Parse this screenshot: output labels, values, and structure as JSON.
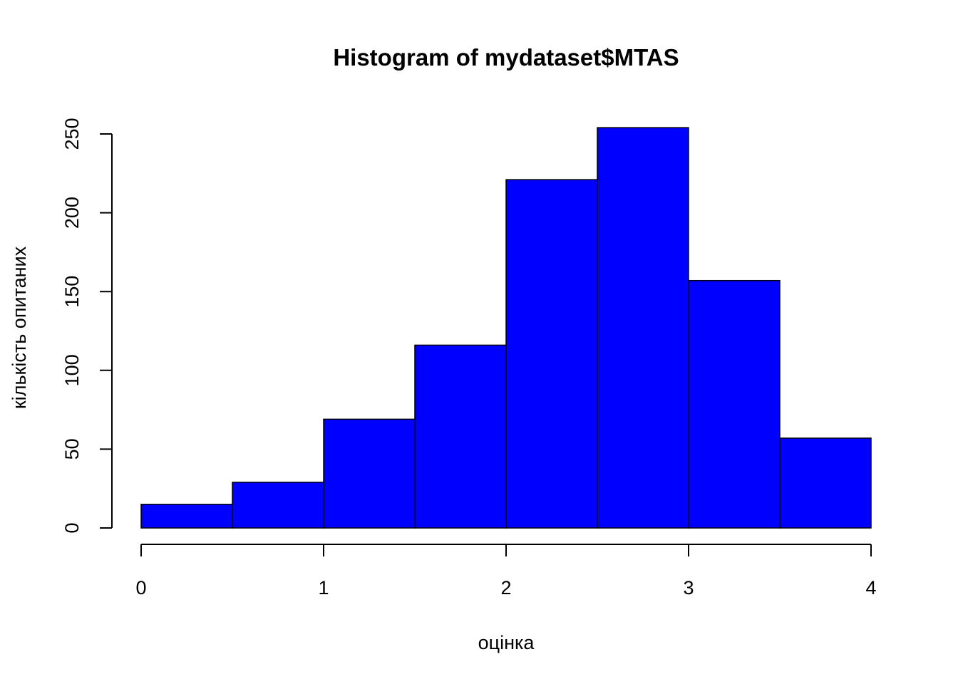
{
  "chart_data": {
    "type": "bar",
    "title": "Histogram of mydataset$MTAS",
    "xlabel": "оцінка",
    "ylabel": "кількість опитаних",
    "bins": [
      {
        "from": 0.0,
        "to": 0.5,
        "count": 15
      },
      {
        "from": 0.5,
        "to": 1.0,
        "count": 29
      },
      {
        "from": 1.0,
        "to": 1.5,
        "count": 69
      },
      {
        "from": 1.5,
        "to": 2.0,
        "count": 116
      },
      {
        "from": 2.0,
        "to": 2.5,
        "count": 221
      },
      {
        "from": 2.5,
        "to": 3.0,
        "count": 254
      },
      {
        "from": 3.0,
        "to": 3.5,
        "count": 157
      },
      {
        "from": 3.5,
        "to": 4.0,
        "count": 57
      }
    ],
    "xlim": [
      0,
      4
    ],
    "ylim": [
      0,
      250
    ],
    "xticks": [
      0,
      1,
      2,
      3,
      4
    ],
    "yticks": [
      0,
      50,
      100,
      150,
      200,
      250
    ],
    "bar_color": "#0000ff",
    "grid": false
  }
}
